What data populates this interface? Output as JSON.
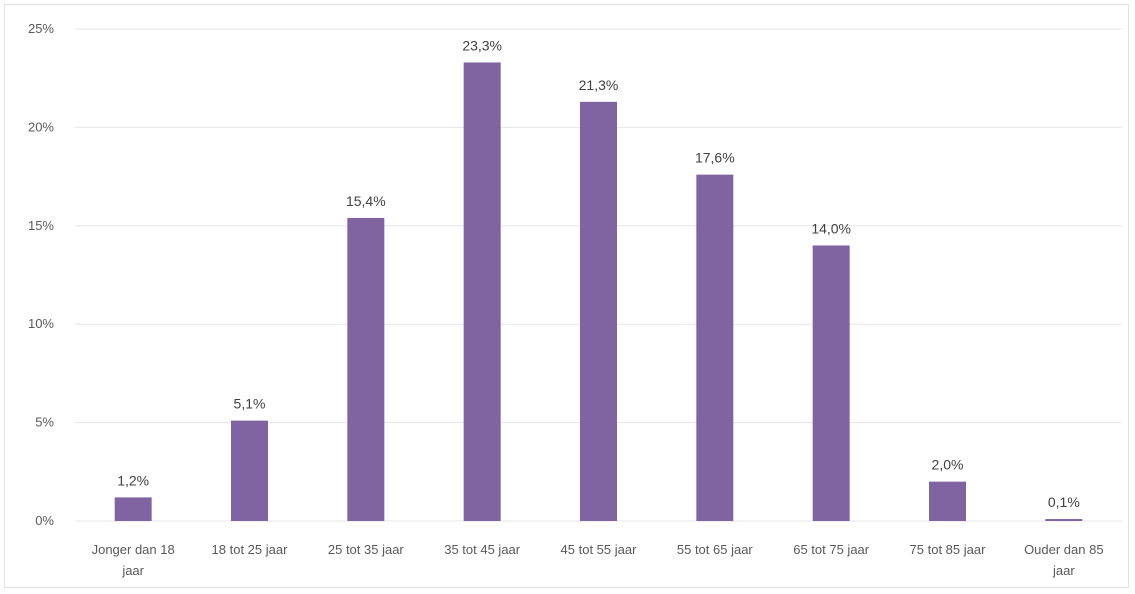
{
  "chart_data": {
    "type": "bar",
    "title": "",
    "xlabel": "",
    "ylabel": "",
    "ylim": [
      0,
      25
    ],
    "yticks": [
      0,
      5,
      10,
      15,
      20,
      25
    ],
    "ytick_labels": [
      "0%",
      "5%",
      "10%",
      "15%",
      "20%",
      "25%"
    ],
    "grid": true,
    "legend": "none",
    "bar_color": "#8064a2",
    "categories": [
      [
        "Jonger dan 18",
        "jaar"
      ],
      [
        "18 tot 25 jaar"
      ],
      [
        "25 tot 35 jaar"
      ],
      [
        "35 tot 45 jaar"
      ],
      [
        "45 tot 55 jaar"
      ],
      [
        "55 tot 65 jaar"
      ],
      [
        "65 tot 75 jaar"
      ],
      [
        "75 tot 85 jaar"
      ],
      [
        "Ouder dan 85",
        "jaar"
      ]
    ],
    "values": [
      1.2,
      5.1,
      15.4,
      23.3,
      21.3,
      17.6,
      14.0,
      2.0,
      0.1
    ],
    "data_labels": [
      "1,2%",
      "5,1%",
      "15,4%",
      "23,3%",
      "21,3%",
      "17,6%",
      "14,0%",
      "2,0%",
      "0,1%"
    ]
  }
}
